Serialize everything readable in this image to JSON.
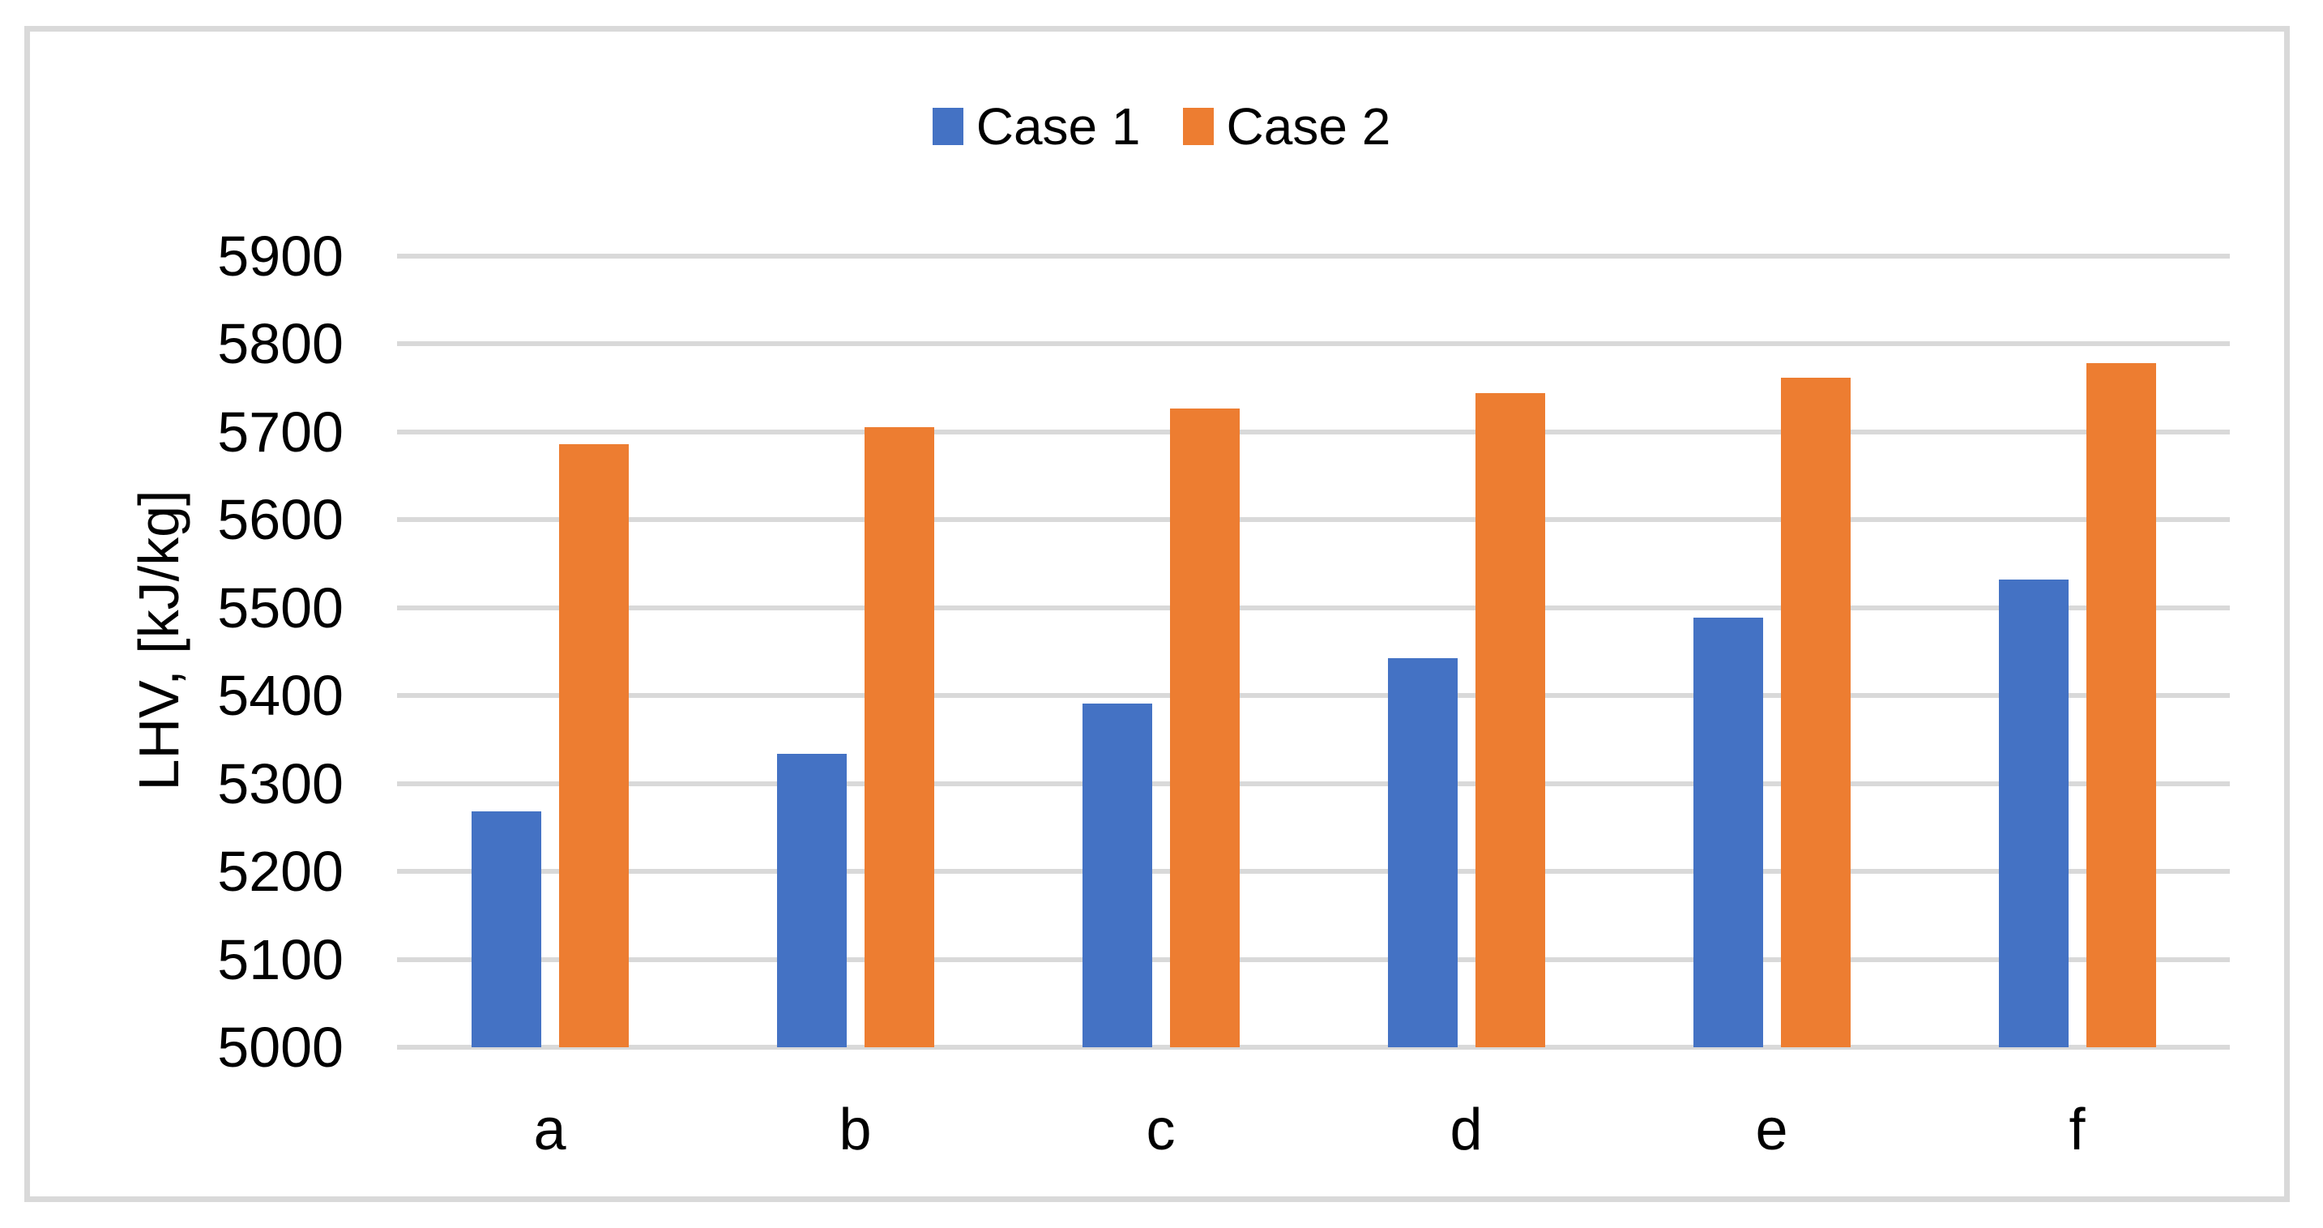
{
  "figure": {
    "background": "#FFFFFF",
    "border_color": "#D9D9D9"
  },
  "legend": {
    "position": "top-center",
    "items": [
      {
        "label": "Case 1",
        "swatch_color": "#4472C4"
      },
      {
        "label": "Case 2",
        "swatch_color": "#ED7D31"
      }
    ]
  },
  "chart_data": {
    "type": "bar",
    "title": "",
    "xlabel": "",
    "ylabel": "LHV, [kJ/kg]",
    "categories": [
      "a",
      "b",
      "c",
      "d",
      "e",
      "f"
    ],
    "series": [
      {
        "name": "Case 1",
        "color": "#4472C4",
        "values": [
          5268,
          5334,
          5391,
          5443,
          5489,
          5532
        ]
      },
      {
        "name": "Case 2",
        "color": "#ED7D31",
        "values": [
          5686,
          5705,
          5727,
          5744,
          5762,
          5778
        ]
      }
    ],
    "ylim": [
      5000,
      5900
    ],
    "ytick_step": 100,
    "yticks": [
      5000,
      5100,
      5200,
      5300,
      5400,
      5500,
      5600,
      5700,
      5800,
      5900
    ],
    "grid": true,
    "gridline_color": "#D9D9D9",
    "legend_position": "top-center"
  }
}
